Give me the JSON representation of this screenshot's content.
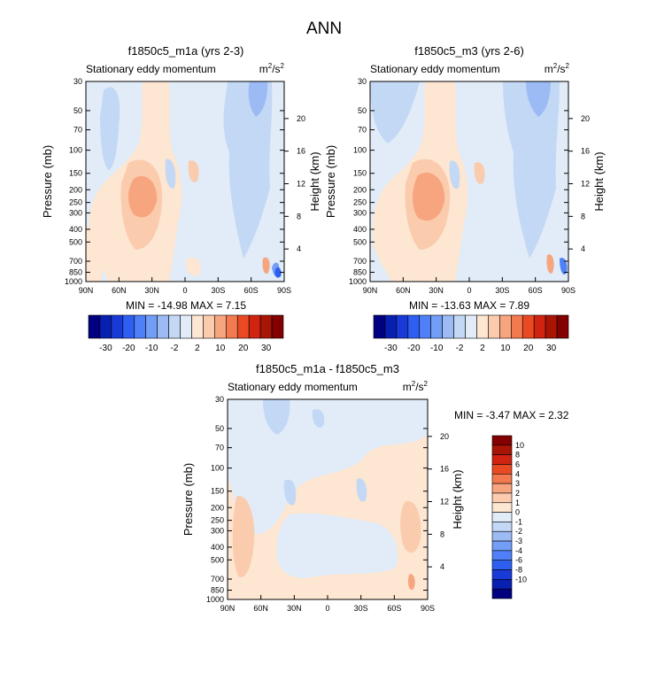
{
  "page_title": "ANN",
  "palette": {
    "neg": [
      "#000080",
      "#0820b0",
      "#1a3ad8",
      "#2f5ff0",
      "#4f80f8",
      "#729ef8",
      "#9cbbf4",
      "#c3d8f5",
      "#e1ecf8"
    ],
    "pos": [
      "#fde6d2",
      "#fbcbae",
      "#f7a57e",
      "#f27a4e",
      "#ea4a23",
      "#d02410",
      "#a81505",
      "#820000"
    ]
  },
  "chart_data": [
    {
      "type": "heatmap",
      "title": "f1850c5_m1a (yrs 2-3)",
      "left_label": "Stationary eddy momentum",
      "units": "m²/s²",
      "units_base": "m",
      "units_sup1": "2",
      "units_mid": "/s",
      "units_sup2": "2",
      "ylabel": "Pressure (mb)",
      "ylabel_right": "Height (km)",
      "x_ticks": [
        "90N",
        "60N",
        "30N",
        "0",
        "30S",
        "60S",
        "90S"
      ],
      "y_ticks": [
        "30",
        "50",
        "70",
        "100",
        "150",
        "200",
        "250",
        "300",
        "400",
        "500",
        "700",
        "850",
        "1000"
      ],
      "y_ticks_right": [
        "20",
        "16",
        "12",
        "8",
        "4"
      ],
      "y_scale": "log",
      "stats": "MIN = -14.98  MAX =  7.15",
      "min": -14.98,
      "max": 7.15,
      "colorbar": {
        "orientation": "horizontal",
        "labels": [
          "-30",
          "-20",
          "-10",
          "-2",
          "2",
          "10",
          "20",
          "30"
        ]
      }
    },
    {
      "type": "heatmap",
      "title": "f1850c5_m3 (yrs 2-6)",
      "left_label": "Stationary eddy momentum",
      "units": "m²/s²",
      "units_base": "m",
      "units_sup1": "2",
      "units_mid": "/s",
      "units_sup2": "2",
      "ylabel": "Pressure (mb)",
      "ylabel_right": "Height (km)",
      "x_ticks": [
        "90N",
        "60N",
        "30N",
        "0",
        "30S",
        "60S",
        "90S"
      ],
      "y_ticks": [
        "30",
        "50",
        "70",
        "100",
        "150",
        "200",
        "250",
        "300",
        "400",
        "500",
        "700",
        "850",
        "1000"
      ],
      "y_ticks_right": [
        "20",
        "16",
        "12",
        "8",
        "4"
      ],
      "y_scale": "log",
      "stats": "MIN = -13.63  MAX =  7.89",
      "min": -13.63,
      "max": 7.89,
      "colorbar": {
        "orientation": "horizontal",
        "labels": [
          "-30",
          "-20",
          "-10",
          "-2",
          "2",
          "10",
          "20",
          "30"
        ]
      }
    },
    {
      "type": "heatmap",
      "title": "f1850c5_m1a - f1850c5_m3",
      "left_label": "Stationary eddy momentum",
      "units": "m²/s²",
      "units_base": "m",
      "units_sup1": "2",
      "units_mid": "/s",
      "units_sup2": "2",
      "ylabel": "Pressure (mb)",
      "ylabel_right": "Height (km)",
      "x_ticks": [
        "90N",
        "60N",
        "30N",
        "0",
        "30S",
        "60S",
        "90S"
      ],
      "y_ticks": [
        "30",
        "50",
        "70",
        "100",
        "150",
        "200",
        "250",
        "300",
        "400",
        "500",
        "700",
        "850",
        "1000"
      ],
      "y_ticks_right": [
        "20",
        "16",
        "12",
        "8",
        "4"
      ],
      "y_scale": "log",
      "stats": "MIN = -3.47  MAX =  2.32",
      "min": -3.47,
      "max": 2.32,
      "colorbar": {
        "orientation": "vertical",
        "labels": [
          "10",
          "8",
          "6",
          "4",
          "3",
          "2",
          "1",
          "0",
          "-1",
          "-2",
          "-3",
          "-4",
          "-6",
          "-8",
          "-10"
        ]
      }
    }
  ]
}
